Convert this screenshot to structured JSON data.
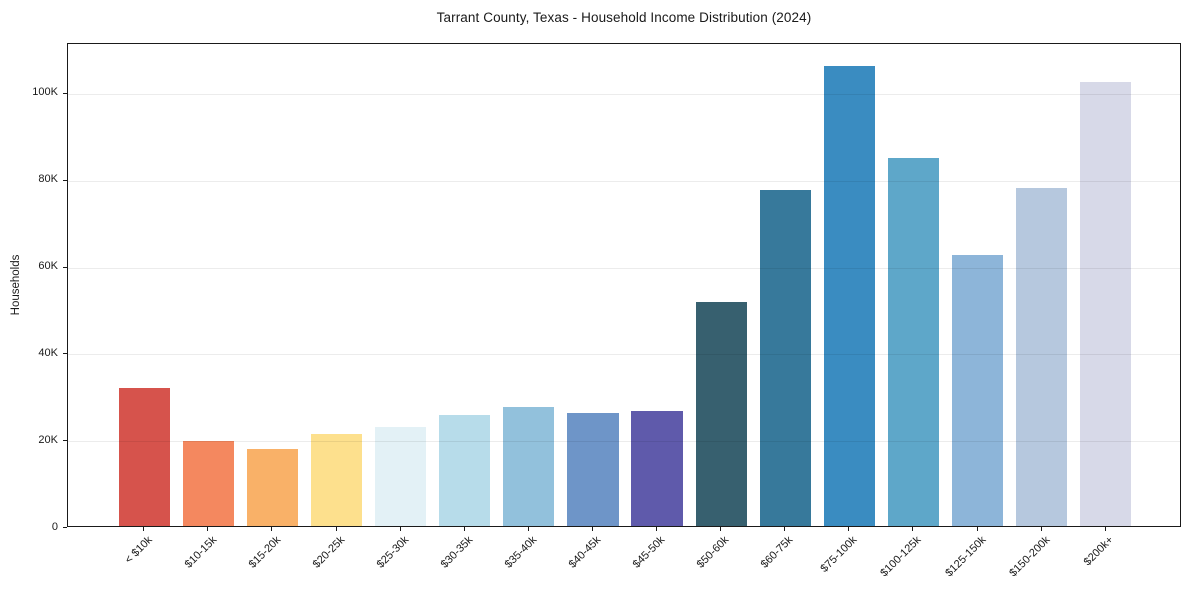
{
  "chart_data": {
    "type": "bar",
    "title": "Tarrant County, Texas - Household Income Distribution (2024)",
    "xlabel": "",
    "ylabel": "Households",
    "categories": [
      "< $10k",
      "$10-15k",
      "$15-20k",
      "$20-25k",
      "$25-30k",
      "$30-35k",
      "$35-40k",
      "$40-45k",
      "$45-50k",
      "$50-60k",
      "$60-75k",
      "$75-100k",
      "$100-125k",
      "$125-150k",
      "$150-200k",
      "$200k+"
    ],
    "values": [
      31700,
      19500,
      17800,
      21300,
      22700,
      25600,
      27500,
      26000,
      26500,
      51700,
      77300,
      105900,
      84700,
      62500,
      77900,
      102400
    ],
    "bar_colors": [
      "#d6534c",
      "#f4885f",
      "#f9b168",
      "#fde08d",
      "#e3f1f6",
      "#b7dcea",
      "#92c1dc",
      "#6e95c8",
      "#5f5aab",
      "#37606f",
      "#37799b",
      "#3a8cc1",
      "#5ea7c9",
      "#8db5d9",
      "#b6c8de",
      "#d7d9e8"
    ],
    "ylim": [
      0,
      111500
    ],
    "yticks": [
      0,
      20000,
      40000,
      60000,
      80000,
      100000
    ],
    "ytick_labels": [
      "0",
      "20K",
      "40K",
      "60K",
      "80K",
      "100K"
    ],
    "grid": "horizontal",
    "legend": "none",
    "styling": {
      "background": "#ffffff",
      "spine_color": "#1a1a1a",
      "grid_color": "#e8e8e8",
      "text_color": "#1a1a1a"
    }
  }
}
